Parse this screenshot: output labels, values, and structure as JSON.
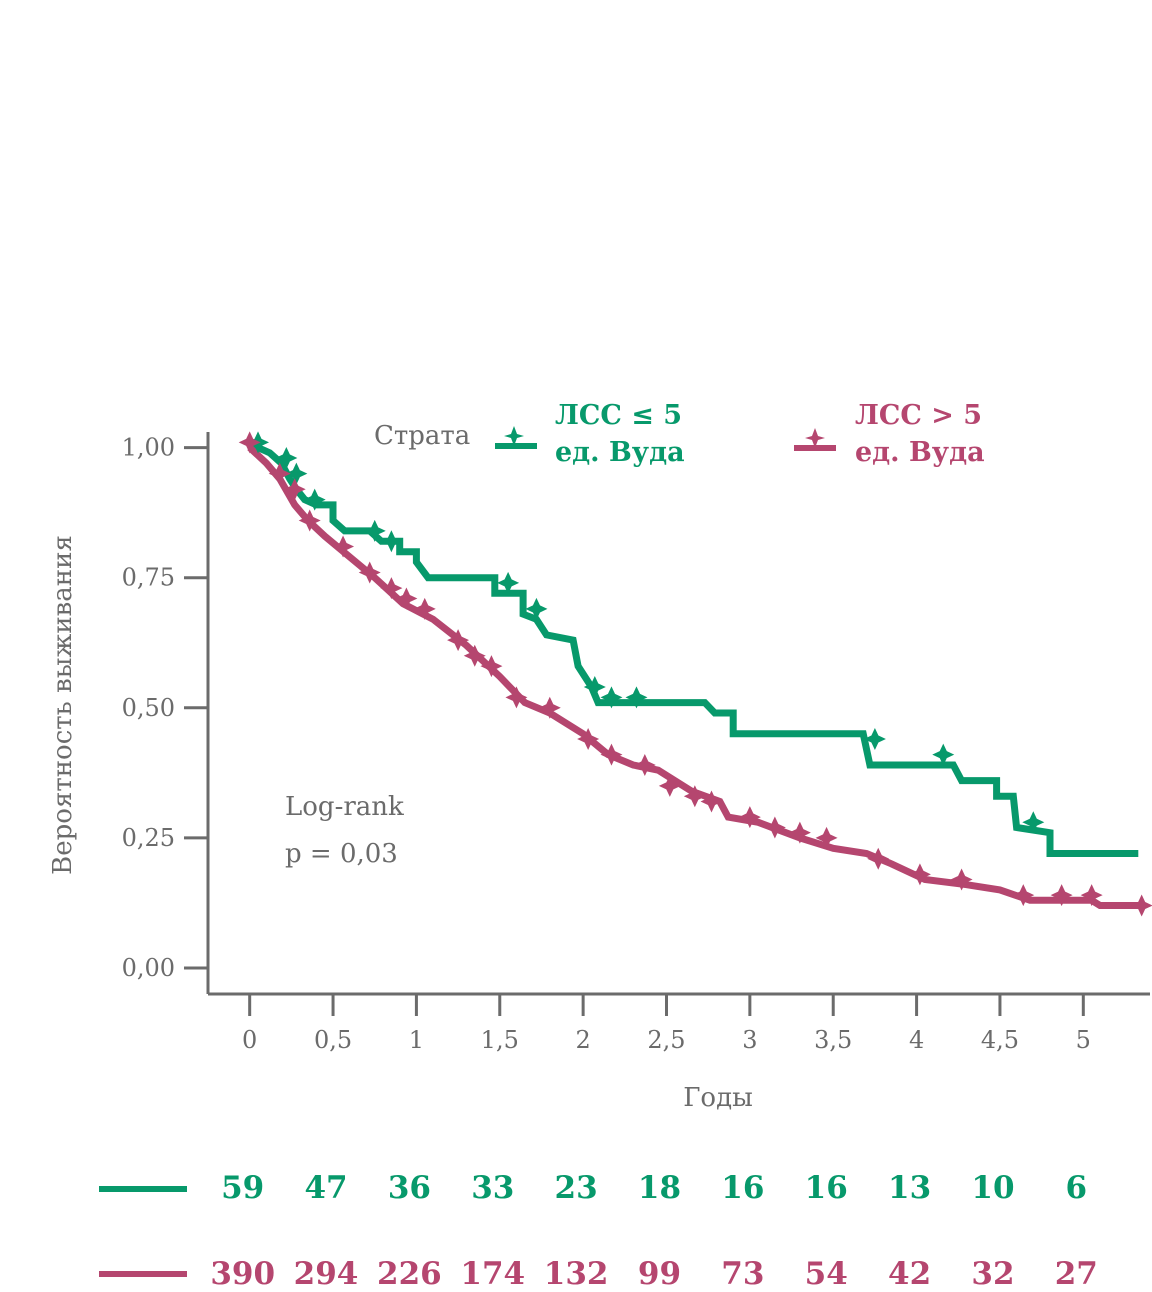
{
  "colors": {
    "axis": "#6b6b6b",
    "green": "#07996b",
    "red": "#b5466f"
  },
  "legend": {
    "title": "Страта",
    "items": [
      {
        "line1": "ЛСС ≤ 5",
        "line2": "ед. Вуда",
        "color": "#07996b"
      },
      {
        "line1": "ЛСС > 5",
        "line2": "ед. Вуда",
        "color": "#b5466f"
      }
    ]
  },
  "annotation": {
    "line1": "Log-rank",
    "line2": "p = 0,03"
  },
  "chart_data": {
    "type": "line",
    "subtype": "kaplan-meier step",
    "xlabel": "Годы",
    "ylabel": "Вероятность выживания",
    "xlim": [
      -0.25,
      5.4
    ],
    "ylim": [
      -0.05,
      1.03
    ],
    "x_ticks": [
      {
        "value": 0,
        "label": "0"
      },
      {
        "value": 0.5,
        "label": "0,5"
      },
      {
        "value": 1,
        "label": "1"
      },
      {
        "value": 1.5,
        "label": "1,5"
      },
      {
        "value": 2,
        "label": "2"
      },
      {
        "value": 2.5,
        "label": "2,5"
      },
      {
        "value": 3,
        "label": "3"
      },
      {
        "value": 3.5,
        "label": "3,5"
      },
      {
        "value": 4,
        "label": "4"
      },
      {
        "value": 4.5,
        "label": "4,5"
      },
      {
        "value": 5,
        "label": "5"
      }
    ],
    "y_ticks": [
      {
        "value": 0,
        "label": "0,00"
      },
      {
        "value": 0.25,
        "label": "0,25"
      },
      {
        "value": 0.5,
        "label": "0,50"
      },
      {
        "value": 0.75,
        "label": "0,75"
      },
      {
        "value": 1,
        "label": "1,00"
      }
    ],
    "series": [
      {
        "name": "ЛСС ≤ 5 ед. Вуда",
        "color": "#07996b",
        "points": [
          [
            0.0,
            1.0
          ],
          [
            0.05,
            1.0
          ],
          [
            0.12,
            0.99
          ],
          [
            0.19,
            0.97
          ],
          [
            0.24,
            0.94
          ],
          [
            0.28,
            0.92
          ],
          [
            0.33,
            0.9
          ],
          [
            0.4,
            0.89
          ],
          [
            0.5,
            0.89
          ],
          [
            0.5,
            0.86
          ],
          [
            0.57,
            0.84
          ],
          [
            0.72,
            0.84
          ],
          [
            0.79,
            0.82
          ],
          [
            0.9,
            0.82
          ],
          [
            0.9,
            0.8
          ],
          [
            1.0,
            0.8
          ],
          [
            1.0,
            0.78
          ],
          [
            1.07,
            0.75
          ],
          [
            1.47,
            0.75
          ],
          [
            1.47,
            0.72
          ],
          [
            1.64,
            0.72
          ],
          [
            1.64,
            0.68
          ],
          [
            1.72,
            0.67
          ],
          [
            1.78,
            0.64
          ],
          [
            1.94,
            0.63
          ],
          [
            1.97,
            0.58
          ],
          [
            2.05,
            0.54
          ],
          [
            2.09,
            0.51
          ],
          [
            2.73,
            0.51
          ],
          [
            2.79,
            0.49
          ],
          [
            2.9,
            0.49
          ],
          [
            2.9,
            0.45
          ],
          [
            3.68,
            0.45
          ],
          [
            3.72,
            0.39
          ],
          [
            4.22,
            0.39
          ],
          [
            4.27,
            0.36
          ],
          [
            4.48,
            0.36
          ],
          [
            4.48,
            0.33
          ],
          [
            4.58,
            0.33
          ],
          [
            4.6,
            0.27
          ],
          [
            4.8,
            0.26
          ],
          [
            4.8,
            0.22
          ],
          [
            5.33,
            0.22
          ]
        ],
        "censored": [
          [
            0.05,
            1.01
          ],
          [
            0.22,
            0.98
          ],
          [
            0.28,
            0.95
          ],
          [
            0.39,
            0.9
          ],
          [
            0.75,
            0.84
          ],
          [
            0.85,
            0.82
          ],
          [
            1.55,
            0.74
          ],
          [
            1.72,
            0.69
          ],
          [
            2.07,
            0.54
          ],
          [
            2.17,
            0.52
          ],
          [
            2.32,
            0.52
          ],
          [
            3.75,
            0.44
          ],
          [
            4.16,
            0.41
          ],
          [
            4.7,
            0.28
          ]
        ],
        "at_risk": [
          59,
          47,
          36,
          33,
          23,
          18,
          16,
          16,
          13,
          10,
          6
        ]
      },
      {
        "name": "ЛСС > 5 ед. Вуда",
        "color": "#b5466f",
        "points": [
          [
            0.0,
            1.0
          ],
          [
            0.1,
            0.97
          ],
          [
            0.18,
            0.94
          ],
          [
            0.27,
            0.89
          ],
          [
            0.35,
            0.86
          ],
          [
            0.45,
            0.83
          ],
          [
            0.6,
            0.79
          ],
          [
            0.75,
            0.75
          ],
          [
            0.92,
            0.7
          ],
          [
            1.1,
            0.67
          ],
          [
            1.3,
            0.62
          ],
          [
            1.5,
            0.56
          ],
          [
            1.65,
            0.51
          ],
          [
            1.8,
            0.49
          ],
          [
            2.0,
            0.45
          ],
          [
            2.15,
            0.41
          ],
          [
            2.3,
            0.39
          ],
          [
            2.45,
            0.38
          ],
          [
            2.65,
            0.34
          ],
          [
            2.82,
            0.32
          ],
          [
            2.87,
            0.29
          ],
          [
            3.05,
            0.28
          ],
          [
            3.3,
            0.25
          ],
          [
            3.5,
            0.23
          ],
          [
            3.7,
            0.22
          ],
          [
            3.85,
            0.2
          ],
          [
            4.05,
            0.17
          ],
          [
            4.3,
            0.16
          ],
          [
            4.5,
            0.15
          ],
          [
            4.68,
            0.13
          ],
          [
            5.05,
            0.13
          ],
          [
            5.1,
            0.12
          ],
          [
            5.35,
            0.12
          ]
        ],
        "censored": [
          [
            0.0,
            1.01
          ],
          [
            0.18,
            0.95
          ],
          [
            0.27,
            0.92
          ],
          [
            0.36,
            0.86
          ],
          [
            0.56,
            0.81
          ],
          [
            0.72,
            0.76
          ],
          [
            0.85,
            0.73
          ],
          [
            0.94,
            0.71
          ],
          [
            1.05,
            0.69
          ],
          [
            1.25,
            0.63
          ],
          [
            1.35,
            0.6
          ],
          [
            1.45,
            0.58
          ],
          [
            1.6,
            0.52
          ],
          [
            1.8,
            0.5
          ],
          [
            2.03,
            0.44
          ],
          [
            2.17,
            0.41
          ],
          [
            2.37,
            0.39
          ],
          [
            2.52,
            0.35
          ],
          [
            2.67,
            0.33
          ],
          [
            2.77,
            0.32
          ],
          [
            3.0,
            0.29
          ],
          [
            3.15,
            0.27
          ],
          [
            3.3,
            0.26
          ],
          [
            3.46,
            0.25
          ],
          [
            3.77,
            0.21
          ],
          [
            4.02,
            0.18
          ],
          [
            4.27,
            0.17
          ],
          [
            4.64,
            0.14
          ],
          [
            4.87,
            0.14
          ],
          [
            5.05,
            0.14
          ],
          [
            5.35,
            0.12
          ]
        ],
        "at_risk": [
          390,
          294,
          226,
          174,
          132,
          99,
          73,
          54,
          42,
          32,
          27
        ]
      }
    ]
  }
}
